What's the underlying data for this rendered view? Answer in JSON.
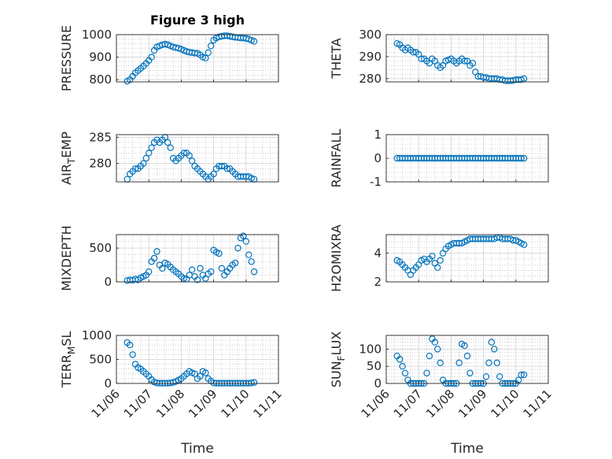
{
  "title": "Figure 3 high",
  "xlabel": "Time",
  "x_ticks": [
    "11/06",
    "11/07",
    "11/08",
    "11/09",
    "11/10",
    "11/11"
  ],
  "colors": {
    "marker": "#0072BD",
    "axis": "#262626",
    "grid": "#b0b0b0"
  },
  "chart_data": [
    {
      "type": "scatter",
      "ylabel": "PRESSURE",
      "ylim": [
        790,
        1000
      ],
      "yticks": [
        800,
        900,
        1000
      ],
      "grid": true,
      "x": [
        "11/06 08:00",
        "11/06 10:00",
        "11/06 12:00",
        "11/06 14:00",
        "11/06 16:00",
        "11/06 18:00",
        "11/06 20:00",
        "11/06 22:00",
        "11/07 00:00",
        "11/07 02:00",
        "11/07 04:00",
        "11/07 06:00",
        "11/07 08:00",
        "11/07 10:00",
        "11/07 12:00",
        "11/07 14:00",
        "11/07 16:00",
        "11/07 18:00",
        "11/07 20:00",
        "11/07 22:00",
        "11/08 00:00",
        "11/08 02:00",
        "11/08 04:00",
        "11/08 06:00",
        "11/08 08:00",
        "11/08 10:00",
        "11/08 12:00",
        "11/08 14:00",
        "11/08 16:00",
        "11/08 18:00",
        "11/08 20:00",
        "11/08 22:00",
        "11/09 00:00",
        "11/09 02:00",
        "11/09 04:00",
        "11/09 06:00",
        "11/09 08:00",
        "11/09 10:00",
        "11/09 12:00",
        "11/09 14:00",
        "11/09 16:00",
        "11/09 18:00",
        "11/09 20:00",
        "11/09 22:00",
        "11/10 00:00",
        "11/10 02:00",
        "11/10 04:00",
        "11/10 06:00"
      ],
      "y": [
        793,
        800,
        815,
        830,
        840,
        850,
        860,
        872,
        885,
        900,
        930,
        945,
        950,
        955,
        958,
        955,
        950,
        945,
        942,
        940,
        935,
        930,
        925,
        922,
        920,
        918,
        917,
        910,
        900,
        896,
        920,
        950,
        975,
        985,
        990,
        993,
        995,
        995,
        993,
        990,
        988,
        987,
        985,
        985,
        983,
        980,
        975,
        970
      ]
    },
    {
      "type": "scatter",
      "ylabel": "THETA",
      "ylim": [
        278.5,
        300
      ],
      "yticks": [
        280,
        290,
        300
      ],
      "grid": true,
      "x": [
        "11/06 08:00",
        "11/06 10:00",
        "11/06 12:00",
        "11/06 14:00",
        "11/06 16:00",
        "11/06 18:00",
        "11/06 20:00",
        "11/06 22:00",
        "11/07 00:00",
        "11/07 02:00",
        "11/07 04:00",
        "11/07 06:00",
        "11/07 08:00",
        "11/07 10:00",
        "11/07 12:00",
        "11/07 14:00",
        "11/07 16:00",
        "11/07 18:00",
        "11/07 20:00",
        "11/07 22:00",
        "11/08 00:00",
        "11/08 02:00",
        "11/08 04:00",
        "11/08 06:00",
        "11/08 08:00",
        "11/08 10:00",
        "11/08 12:00",
        "11/08 14:00",
        "11/08 16:00",
        "11/08 18:00",
        "11/08 20:00",
        "11/08 22:00",
        "11/09 00:00",
        "11/09 02:00",
        "11/09 04:00",
        "11/09 06:00",
        "11/09 08:00",
        "11/09 10:00",
        "11/09 12:00",
        "11/09 14:00",
        "11/09 16:00",
        "11/09 18:00",
        "11/09 20:00",
        "11/09 22:00",
        "11/10 00:00",
        "11/10 02:00",
        "11/10 04:00",
        "11/10 06:00"
      ],
      "y": [
        296,
        295.5,
        294,
        293,
        294,
        293,
        292,
        292,
        291,
        289,
        289,
        288,
        287,
        289,
        288,
        286,
        285,
        286,
        288,
        288.5,
        289,
        288,
        287,
        288,
        289,
        288,
        288,
        286,
        287,
        283,
        281,
        281,
        280.5,
        280.5,
        280,
        280,
        280,
        280,
        279.5,
        279.5,
        279,
        279,
        279,
        279.2,
        279.5,
        279.5,
        279.5,
        280
      ]
    },
    {
      "type": "scatter",
      "ylabel_parts": [
        "AIR",
        "T",
        "EMP"
      ],
      "ylim": [
        276.5,
        285.5
      ],
      "yticks": [
        280,
        285
      ],
      "grid": true,
      "x": [
        "11/06 08:00",
        "11/06 10:00",
        "11/06 12:00",
        "11/06 14:00",
        "11/06 16:00",
        "11/06 18:00",
        "11/06 20:00",
        "11/06 22:00",
        "11/07 00:00",
        "11/07 02:00",
        "11/07 04:00",
        "11/07 06:00",
        "11/07 08:00",
        "11/07 10:00",
        "11/07 12:00",
        "11/07 14:00",
        "11/07 16:00",
        "11/07 18:00",
        "11/07 20:00",
        "11/07 22:00",
        "11/08 00:00",
        "11/08 02:00",
        "11/08 04:00",
        "11/08 06:00",
        "11/08 08:00",
        "11/08 10:00",
        "11/08 12:00",
        "11/08 14:00",
        "11/08 16:00",
        "11/08 18:00",
        "11/08 20:00",
        "11/08 22:00",
        "11/09 00:00",
        "11/09 02:00",
        "11/09 04:00",
        "11/09 06:00",
        "11/09 08:00",
        "11/09 10:00",
        "11/09 12:00",
        "11/09 14:00",
        "11/09 16:00",
        "11/09 18:00",
        "11/09 20:00",
        "11/09 22:00",
        "11/10 00:00",
        "11/10 02:00",
        "11/10 04:00",
        "11/10 06:00"
      ],
      "y": [
        277,
        278,
        278.5,
        279,
        279,
        279.5,
        280,
        281,
        282,
        283,
        284,
        284.5,
        284,
        284.5,
        285,
        284,
        283,
        281,
        280.5,
        281,
        281.5,
        282,
        282,
        281.5,
        280.5,
        279.5,
        279,
        278.5,
        278,
        277.5,
        277,
        277.5,
        278,
        279,
        279.5,
        279.5,
        279.5,
        279,
        279,
        278.5,
        278,
        277.5,
        277.5,
        277.5,
        277.5,
        277.5,
        277.2,
        277
      ]
    },
    {
      "type": "scatter",
      "ylabel": "RAINFALL",
      "ylim": [
        -1,
        1
      ],
      "yticks": [
        -1,
        0,
        1
      ],
      "grid": true,
      "x": [
        "11/06 08:00",
        "11/06 10:00",
        "11/06 12:00",
        "11/06 14:00",
        "11/06 16:00",
        "11/06 18:00",
        "11/06 20:00",
        "11/06 22:00",
        "11/07 00:00",
        "11/07 02:00",
        "11/07 04:00",
        "11/07 06:00",
        "11/07 08:00",
        "11/07 10:00",
        "11/07 12:00",
        "11/07 14:00",
        "11/07 16:00",
        "11/07 18:00",
        "11/07 20:00",
        "11/07 22:00",
        "11/08 00:00",
        "11/08 02:00",
        "11/08 04:00",
        "11/08 06:00",
        "11/08 08:00",
        "11/08 10:00",
        "11/08 12:00",
        "11/08 14:00",
        "11/08 16:00",
        "11/08 18:00",
        "11/08 20:00",
        "11/08 22:00",
        "11/09 00:00",
        "11/09 02:00",
        "11/09 04:00",
        "11/09 06:00",
        "11/09 08:00",
        "11/09 10:00",
        "11/09 12:00",
        "11/09 14:00",
        "11/09 16:00",
        "11/09 18:00",
        "11/09 20:00",
        "11/09 22:00",
        "11/10 00:00",
        "11/10 02:00",
        "11/10 04:00",
        "11/10 06:00"
      ],
      "y": [
        0,
        0,
        0,
        0,
        0,
        0,
        0,
        0,
        0,
        0,
        0,
        0,
        0,
        0,
        0,
        0,
        0,
        0,
        0,
        0,
        0,
        0,
        0,
        0,
        0,
        0,
        0,
        0,
        0,
        0,
        0,
        0,
        0,
        0,
        0,
        0,
        0,
        0,
        0,
        0,
        0,
        0,
        0,
        0,
        0,
        0,
        0,
        0
      ]
    },
    {
      "type": "scatter",
      "ylabel": "MIXDEPTH",
      "ylim": [
        0,
        700
      ],
      "yticks": [
        0,
        500
      ],
      "grid": true,
      "x": [
        "11/06 08:00",
        "11/06 10:00",
        "11/06 12:00",
        "11/06 14:00",
        "11/06 16:00",
        "11/06 18:00",
        "11/06 20:00",
        "11/06 22:00",
        "11/07 00:00",
        "11/07 02:00",
        "11/07 04:00",
        "11/07 06:00",
        "11/07 08:00",
        "11/07 10:00",
        "11/07 12:00",
        "11/07 14:00",
        "11/07 16:00",
        "11/07 18:00",
        "11/07 20:00",
        "11/07 22:00",
        "11/08 00:00",
        "11/08 02:00",
        "11/08 04:00",
        "11/08 06:00",
        "11/08 08:00",
        "11/08 10:00",
        "11/08 12:00",
        "11/08 14:00",
        "11/08 16:00",
        "11/08 18:00",
        "11/08 20:00",
        "11/08 22:00",
        "11/09 00:00",
        "11/09 02:00",
        "11/09 04:00",
        "11/09 06:00",
        "11/09 08:00",
        "11/09 10:00",
        "11/09 12:00",
        "11/09 14:00",
        "11/09 16:00",
        "11/09 18:00",
        "11/09 20:00",
        "11/09 22:00",
        "11/10 00:00",
        "11/10 02:00",
        "11/10 04:00",
        "11/10 06:00"
      ],
      "y": [
        20,
        30,
        25,
        40,
        30,
        60,
        80,
        100,
        150,
        300,
        350,
        450,
        250,
        200,
        280,
        260,
        220,
        180,
        150,
        120,
        80,
        50,
        40,
        100,
        180,
        80,
        30,
        200,
        100,
        50,
        120,
        150,
        470,
        440,
        420,
        200,
        100,
        150,
        200,
        250,
        280,
        500,
        650,
        680,
        600,
        400,
        300,
        150
      ]
    },
    {
      "type": "scatter",
      "ylabel": "H2OMIXRA",
      "ylim": [
        2,
        5.3
      ],
      "yticks": [
        2,
        4
      ],
      "grid": true,
      "x": [
        "11/06 08:00",
        "11/06 10:00",
        "11/06 12:00",
        "11/06 14:00",
        "11/06 16:00",
        "11/06 18:00",
        "11/06 20:00",
        "11/06 22:00",
        "11/07 00:00",
        "11/07 02:00",
        "11/07 04:00",
        "11/07 06:00",
        "11/07 08:00",
        "11/07 10:00",
        "11/07 12:00",
        "11/07 14:00",
        "11/07 16:00",
        "11/07 18:00",
        "11/07 20:00",
        "11/07 22:00",
        "11/08 00:00",
        "11/08 02:00",
        "11/08 04:00",
        "11/08 06:00",
        "11/08 08:00",
        "11/08 10:00",
        "11/08 12:00",
        "11/08 14:00",
        "11/08 16:00",
        "11/08 18:00",
        "11/08 20:00",
        "11/08 22:00",
        "11/09 00:00",
        "11/09 02:00",
        "11/09 04:00",
        "11/09 06:00",
        "11/09 08:00",
        "11/09 10:00",
        "11/09 12:00",
        "11/09 14:00",
        "11/09 16:00",
        "11/09 18:00",
        "11/09 20:00",
        "11/09 22:00",
        "11/10 00:00",
        "11/10 02:00",
        "11/10 04:00",
        "11/10 06:00"
      ],
      "y": [
        3.5,
        3.4,
        3.2,
        3.0,
        2.8,
        2.5,
        2.8,
        3.0,
        3.2,
        3.5,
        3.6,
        3.4,
        3.6,
        3.8,
        3.3,
        3.0,
        3.5,
        4.0,
        4.3,
        4.5,
        4.6,
        4.7,
        4.7,
        4.7,
        4.7,
        4.8,
        4.9,
        5.0,
        5.0,
        5.0,
        5.0,
        5.0,
        5.0,
        5.0,
        5.0,
        5.0,
        5.0,
        5.1,
        5.1,
        5.0,
        5.0,
        5.0,
        5.0,
        4.9,
        4.9,
        4.8,
        4.7,
        4.6
      ]
    },
    {
      "type": "scatter",
      "ylabel_parts": [
        "TERR",
        "M",
        "SL"
      ],
      "ylim": [
        0,
        1000
      ],
      "yticks": [
        0,
        500,
        1000
      ],
      "grid": true,
      "x": [
        "11/06 08:00",
        "11/06 10:00",
        "11/06 12:00",
        "11/06 14:00",
        "11/06 16:00",
        "11/06 18:00",
        "11/06 20:00",
        "11/06 22:00",
        "11/07 00:00",
        "11/07 02:00",
        "11/07 04:00",
        "11/07 06:00",
        "11/07 08:00",
        "11/07 10:00",
        "11/07 12:00",
        "11/07 14:00",
        "11/07 16:00",
        "11/07 18:00",
        "11/07 20:00",
        "11/07 22:00",
        "11/08 00:00",
        "11/08 02:00",
        "11/08 04:00",
        "11/08 06:00",
        "11/08 08:00",
        "11/08 10:00",
        "11/08 12:00",
        "11/08 14:00",
        "11/08 16:00",
        "11/08 18:00",
        "11/08 20:00",
        "11/08 22:00",
        "11/09 00:00",
        "11/09 02:00",
        "11/09 04:00",
        "11/09 06:00",
        "11/09 08:00",
        "11/09 10:00",
        "11/09 12:00",
        "11/09 14:00",
        "11/09 16:00",
        "11/09 18:00",
        "11/09 20:00",
        "11/09 22:00",
        "11/10 00:00",
        "11/10 02:00",
        "11/10 04:00",
        "11/10 06:00"
      ],
      "y": [
        850,
        800,
        600,
        400,
        330,
        300,
        250,
        200,
        150,
        80,
        30,
        10,
        5,
        5,
        5,
        5,
        10,
        20,
        40,
        70,
        100,
        150,
        200,
        250,
        220,
        200,
        100,
        150,
        250,
        220,
        100,
        50,
        10,
        5,
        5,
        5,
        5,
        5,
        5,
        5,
        5,
        5,
        5,
        5,
        5,
        5,
        10,
        20
      ]
    },
    {
      "type": "scatter",
      "ylabel_parts": [
        "SUN",
        "F",
        "LUX"
      ],
      "ylim": [
        0,
        140
      ],
      "yticks": [
        0,
        50,
        100
      ],
      "grid": true,
      "x": [
        "11/06 08:00",
        "11/06 10:00",
        "11/06 12:00",
        "11/06 14:00",
        "11/06 16:00",
        "11/06 18:00",
        "11/06 20:00",
        "11/06 22:00",
        "11/07 00:00",
        "11/07 02:00",
        "11/07 04:00",
        "11/07 06:00",
        "11/07 08:00",
        "11/07 10:00",
        "11/07 12:00",
        "11/07 14:00",
        "11/07 16:00",
        "11/07 18:00",
        "11/07 20:00",
        "11/07 22:00",
        "11/08 00:00",
        "11/08 02:00",
        "11/08 04:00",
        "11/08 06:00",
        "11/08 08:00",
        "11/08 10:00",
        "11/08 12:00",
        "11/08 14:00",
        "11/08 16:00",
        "11/08 18:00",
        "11/08 20:00",
        "11/08 22:00",
        "11/09 00:00",
        "11/09 02:00",
        "11/09 04:00",
        "11/09 06:00",
        "11/09 08:00",
        "11/09 10:00",
        "11/09 12:00",
        "11/09 14:00",
        "11/09 16:00",
        "11/09 18:00",
        "11/09 20:00",
        "11/09 22:00",
        "11/10 00:00",
        "11/10 02:00",
        "11/10 04:00",
        "11/10 06:00"
      ],
      "y": [
        80,
        70,
        50,
        30,
        10,
        0,
        0,
        0,
        0,
        0,
        0,
        30,
        80,
        130,
        120,
        100,
        60,
        10,
        0,
        0,
        0,
        0,
        0,
        60,
        115,
        110,
        80,
        30,
        0,
        0,
        0,
        0,
        0,
        20,
        60,
        120,
        100,
        60,
        20,
        0,
        0,
        0,
        0,
        0,
        0,
        10,
        25,
        25
      ]
    }
  ]
}
